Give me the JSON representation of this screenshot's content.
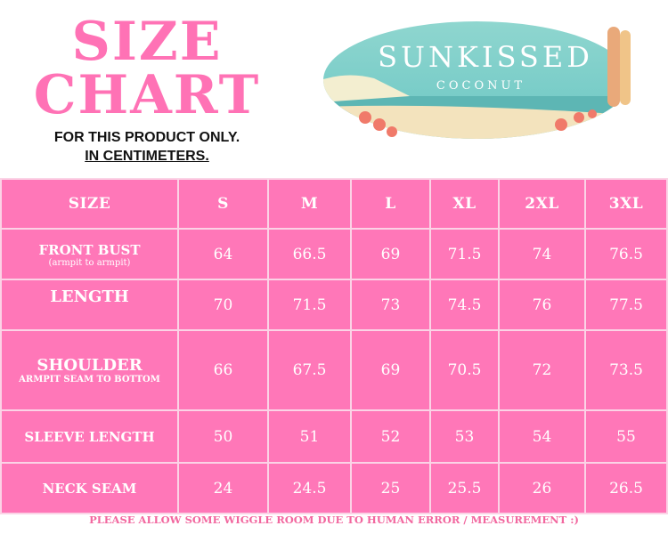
{
  "title": {
    "line1": "SIZE",
    "line2": "CHART",
    "subtitle1": "FOR THIS PRODUCT ONLY.",
    "subtitle2": "IN CENTIMETERS."
  },
  "logo": {
    "brand": "SUNKISSED",
    "sub": "COCONUT"
  },
  "colors": {
    "pink": "#ff77b8",
    "title_pink": "#ff72b5"
  },
  "table": {
    "header": [
      "SIZE",
      "S",
      "M",
      "L",
      "XL",
      "2XL",
      "3XL"
    ],
    "rows": [
      {
        "label": "FRONT BUST",
        "note": "(armpit to armpit)",
        "values": [
          "64",
          "66.5",
          "69",
          "71.5",
          "74",
          "76.5"
        ]
      },
      {
        "label": "LENGTH",
        "values": [
          "70",
          "71.5",
          "73",
          "74.5",
          "76",
          "77.5"
        ]
      },
      {
        "label": "SHOULDER",
        "note": "ARMPIT SEAM TO BOTTOM",
        "values": [
          "66",
          "67.5",
          "69",
          "70.5",
          "72",
          "73.5"
        ]
      },
      {
        "label": "SLEEVE LENGTH",
        "values": [
          "50",
          "51",
          "52",
          "53",
          "54",
          "55"
        ]
      },
      {
        "label": "NECK SEAM",
        "values": [
          "24",
          "24.5",
          "25",
          "25.5",
          "26",
          "26.5"
        ]
      }
    ]
  },
  "footer": "PLEASE ALLOW SOME WIGGLE ROOM DUE TO HUMAN ERROR / MEASUREMENT :)"
}
